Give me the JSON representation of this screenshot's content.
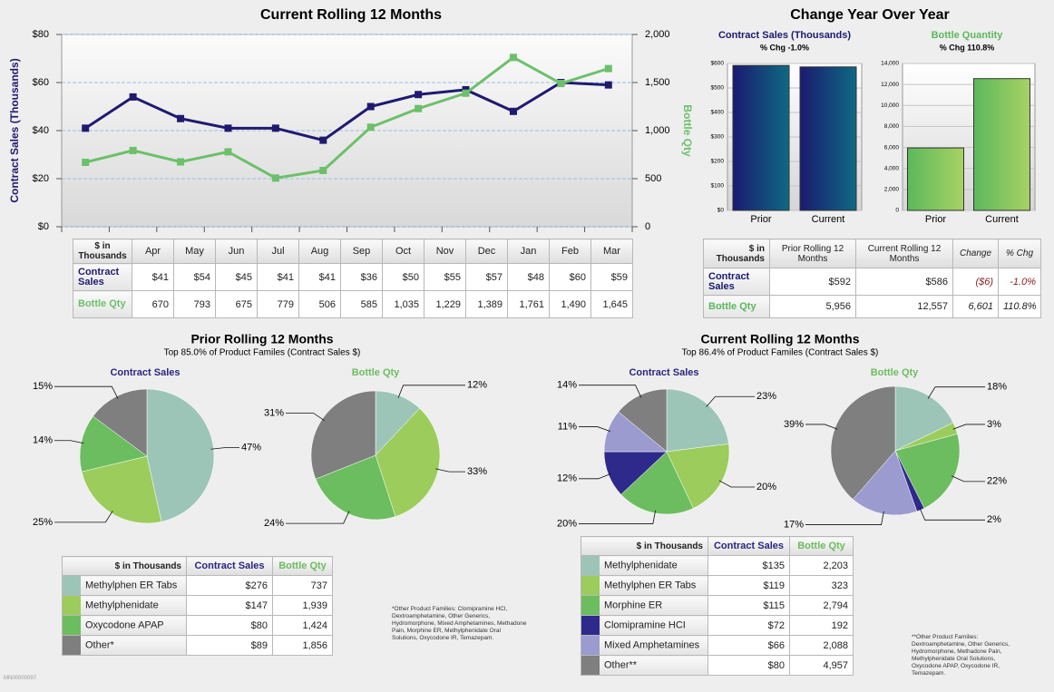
{
  "headings": {
    "yoy": "Change Year Over Year",
    "doc_id": "MN00000097"
  },
  "chart_data": [
    {
      "type": "line",
      "title": "Current Rolling 12 Months",
      "y_label": "Contract Sales (Thousands)",
      "y2_label": "Bottle Qty",
      "table_header": "$ in Thousands",
      "categories": [
        "Apr",
        "May",
        "Jun",
        "Jul",
        "Aug",
        "Sep",
        "Oct",
        "Nov",
        "Dec",
        "Jan",
        "Feb",
        "Mar"
      ],
      "ylim": [
        0,
        80
      ],
      "yticks": [
        {
          "value": 0,
          "label": "$0"
        },
        {
          "value": 20,
          "label": "$20"
        },
        {
          "value": 40,
          "label": "$40"
        },
        {
          "value": 60,
          "label": "$60"
        },
        {
          "value": 80,
          "label": "$80"
        }
      ],
      "y2lim": [
        0,
        2000
      ],
      "y2ticks": [
        0,
        500,
        {
          "value": 1000,
          "label": "1,000"
        },
        {
          "value": 1500,
          "label": "1,500"
        },
        {
          "value": 2000,
          "label": "2,000"
        }
      ],
      "grid": true,
      "series": [
        {
          "name": "Contract Sales",
          "color": "#1f1a70",
          "values": [
            41,
            54,
            45,
            41,
            41,
            36,
            50,
            55,
            57,
            48,
            60,
            59
          ],
          "value_labels": [
            "$41",
            "$54",
            "$45",
            "$41",
            "$41",
            "$36",
            "$50",
            "$55",
            "$57",
            "$48",
            "$60",
            "$59"
          ]
        },
        {
          "name": "Bottle Qty",
          "color": "#6cc06a",
          "axis": "y2",
          "values": [
            670,
            793,
            675,
            779,
            506,
            585,
            1035,
            1229,
            1389,
            1761,
            1490,
            1645
          ],
          "value_labels": [
            "670",
            "793",
            "675",
            "779",
            "506",
            "585",
            "1,035",
            "1,229",
            "1,389",
            "1,761",
            "1,490",
            "1,645"
          ]
        }
      ]
    },
    {
      "type": "bar",
      "title": "Contract Sales (Thousands)",
      "subtitle": "% Chg -1.0%",
      "categories": [
        "Prior",
        "Current"
      ],
      "values": [
        592,
        586
      ],
      "value_labels": [
        "$592",
        "$586"
      ],
      "colors": [
        "#1a1a70",
        "#0e6a82"
      ],
      "ylim": [
        0,
        600
      ],
      "yticks": [
        {
          "value": 0,
          "label": "$0"
        },
        {
          "value": 100,
          "label": "$100"
        },
        {
          "value": 200,
          "label": "$200"
        },
        {
          "value": 300,
          "label": "$300"
        },
        {
          "value": 400,
          "label": "$400"
        },
        {
          "value": 500,
          "label": "$500"
        },
        {
          "value": 600,
          "label": "$600"
        }
      ]
    },
    {
      "type": "bar",
      "title": "Bottle Quantity",
      "subtitle": "% Chg 110.8%",
      "categories": [
        "Prior",
        "Current"
      ],
      "values": [
        5956,
        12557
      ],
      "value_labels": [
        "5,956",
        "12,557"
      ],
      "colors": [
        "#5cb85c",
        "#a8d264"
      ],
      "ylim": [
        0,
        14000
      ],
      "yticks": [
        0,
        {
          "value": 2000,
          "label": "2,000"
        },
        {
          "value": 4000,
          "label": "4,000"
        },
        {
          "value": 6000,
          "label": "6,000"
        },
        {
          "value": 8000,
          "label": "8,000"
        },
        {
          "value": 10000,
          "label": "10,000"
        },
        {
          "value": 12000,
          "label": "12,000"
        },
        {
          "value": 14000,
          "label": "14,000"
        }
      ]
    },
    {
      "type": "pie",
      "title": "Prior Rolling 12 Months",
      "subtitle": "Top 85.0% of Product Familes (Contract Sales $)",
      "table_header": "$ in Thousands",
      "categories": [
        "Methylphen ER Tabs",
        "Methylphenidate",
        "Oxycodone APAP",
        "Other*"
      ],
      "colors": [
        "#9cc5b8",
        "#9ccc5c",
        "#6cbd5f",
        "#7f7f7f"
      ],
      "series": [
        {
          "name": "Contract Sales",
          "color": "#2a2580",
          "values": [
            47,
            25,
            14,
            15
          ],
          "value_labels": [
            "47%",
            "25%",
            "14%",
            "15%"
          ],
          "table_values": [
            "$276",
            "$147",
            "$80",
            "$89"
          ]
        },
        {
          "name": "Bottle Qty",
          "color": "#6cbd5f",
          "values": [
            12,
            33,
            24,
            31
          ],
          "value_labels": [
            "12%",
            "33%",
            "24%",
            "31%"
          ],
          "table_values": [
            "737",
            "1,939",
            "1,424",
            "1,856"
          ]
        }
      ],
      "footnote": "*Other Product Families: Clomipramine HCl, Dextroamphetamine, Other Generics, Hydromorphone, Mixed Amphetamines, Methadone Pain, Morphine ER, Methylphenidate Oral Solutions, Oxycodone IR, Temazepam."
    },
    {
      "type": "pie",
      "title": "Current Rolling 12 Months",
      "subtitle": "Top 86.4% of Product Familes (Contract Sales $)",
      "table_header": "$ in Thousands",
      "categories": [
        "Methylphenidate",
        "Methylphen ER Tabs",
        "Morphine ER",
        "Clomipramine HCI",
        "Mixed Amphetamines",
        "Other**"
      ],
      "colors": [
        "#9cc5b8",
        "#9ccc5c",
        "#6cbd5f",
        "#2e2a8c",
        "#9b9bd0",
        "#7f7f7f"
      ],
      "series": [
        {
          "name": "Contract Sales",
          "color": "#2a2580",
          "values": [
            23,
            20,
            20,
            12,
            11,
            14
          ],
          "value_labels": [
            "23%",
            "20%",
            "20%",
            "12%",
            "11%",
            "14%"
          ],
          "table_values": [
            "$135",
            "$119",
            "$115",
            "$72",
            "$66",
            "$80"
          ]
        },
        {
          "name": "Bottle Qty",
          "color": "#6cbd5f",
          "values": [
            18,
            3,
            22,
            2,
            17,
            39
          ],
          "value_labels": [
            "18%",
            "3%",
            "22%",
            "2%",
            "17%",
            "39%"
          ],
          "table_values": [
            "2,203",
            "323",
            "2,794",
            "192",
            "2,088",
            "4,957"
          ]
        }
      ],
      "footnote": "**Other Product Families: Dextroamphetamine, Other Generics, Hydromorphone, Methadone Pain, Methylphenidate Oral Solutions, Oxycodone APAP, Oxycodone IR, Temazepam."
    }
  ],
  "yoy_table": {
    "header": "$ in Thousands",
    "columns": [
      "Prior Rolling 12 Months",
      "Current Rolling 12 Months",
      "Change",
      "% Chg"
    ],
    "rows": [
      {
        "label": "Contract Sales",
        "change": "($6)",
        "pct": "-1.0%"
      },
      {
        "label": "Bottle Qty",
        "change": "6,601",
        "pct": "110.8%"
      }
    ]
  }
}
